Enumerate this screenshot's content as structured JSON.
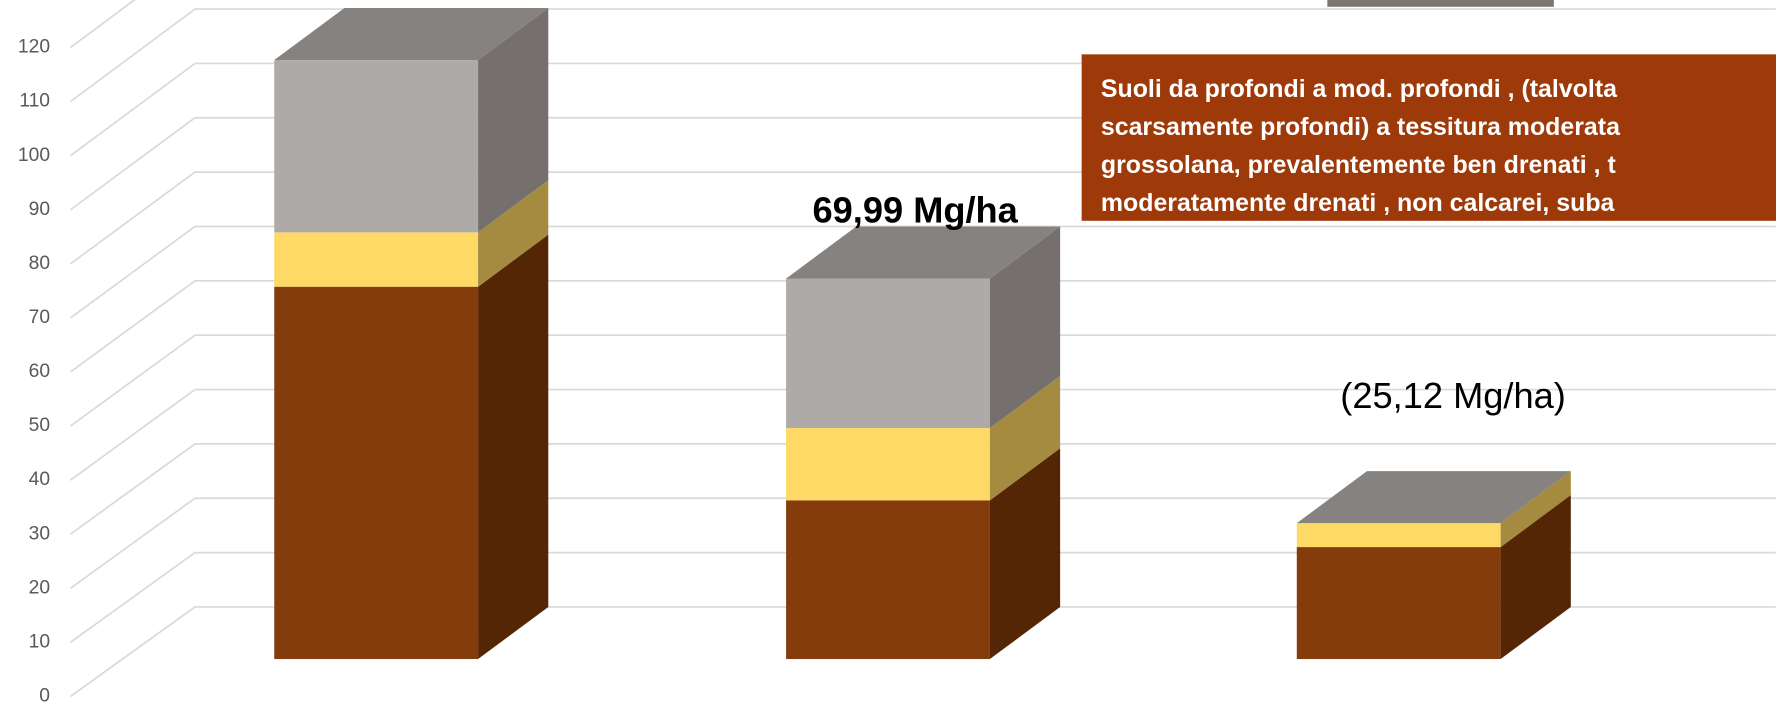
{
  "chart_data": {
    "type": "bar3d_stacked",
    "categories": [
      null,
      null,
      null
    ],
    "series": [
      {
        "color": "#843c0c",
        "side_color": "#552605",
        "values": [
          68.5,
          29.2,
          20.6
        ]
      },
      {
        "color": "#ffd966",
        "side_color": "#a58b3f",
        "values": [
          10,
          13.3,
          4.4
        ]
      },
      {
        "color": "#aeaaa7",
        "side_color": "#75706e",
        "values": [
          31.7,
          27.5,
          0
        ]
      }
    ],
    "top_color": "#868280",
    "ylim": [
      0,
      120
    ],
    "yticks": [
      0,
      10,
      20,
      30,
      40,
      50,
      60,
      70,
      80,
      90,
      100,
      110,
      120
    ],
    "grid": true,
    "annotations": [
      "69,99 Mg/ha",
      "(25,12 Mg/ha)"
    ],
    "note_box": [
      "Suoli da profondi  a mod. profondi , (talvolta",
      "scarsamente profondi) a tessitura moderata",
      "grossolana, prevalentemente ben drenati , t",
      "moderatamente drenati , non calcarei, suba"
    ]
  }
}
